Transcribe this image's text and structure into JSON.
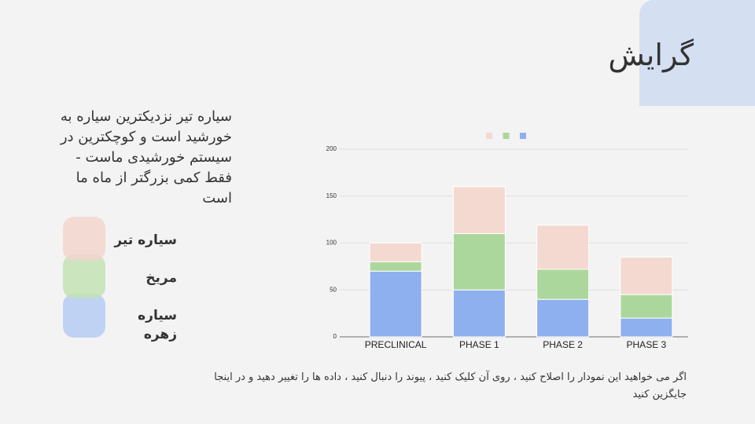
{
  "title": "گرایش",
  "body": "سیاره تیر نزدیکترین سیاره به خورشید است و کوچکترین در سیستم خورشیدی ماست - فقط کمی بزرگتر از ماه ما است",
  "footer": "اگر می خواهید این نمودار را اصلاح کنید ، روی آن کلیک کنید ، پیوند را دنبال کنید ، داده ها را تغییر دهید و در اینجا جایگزین کنید",
  "chart_data": {
    "type": "stacked_bar",
    "categories": [
      "PRECLINICAL",
      "PHASE 1",
      "PHASE 2",
      "PHASE 3"
    ],
    "series": [
      {
        "name": "سیاره زهره",
        "color": "#8fb0ef",
        "values": [
          70,
          50,
          40,
          20
        ]
      },
      {
        "name": "مریخ",
        "color": "#acd79c",
        "values": [
          10,
          60,
          32,
          25
        ]
      },
      {
        "name": "سیاره تیر",
        "color": "#f4d9d1",
        "values": [
          20,
          50,
          47,
          40
        ]
      }
    ],
    "ylim": [
      0,
      200
    ],
    "yticks": [
      0,
      50,
      100,
      150,
      200
    ],
    "grid": true
  }
}
